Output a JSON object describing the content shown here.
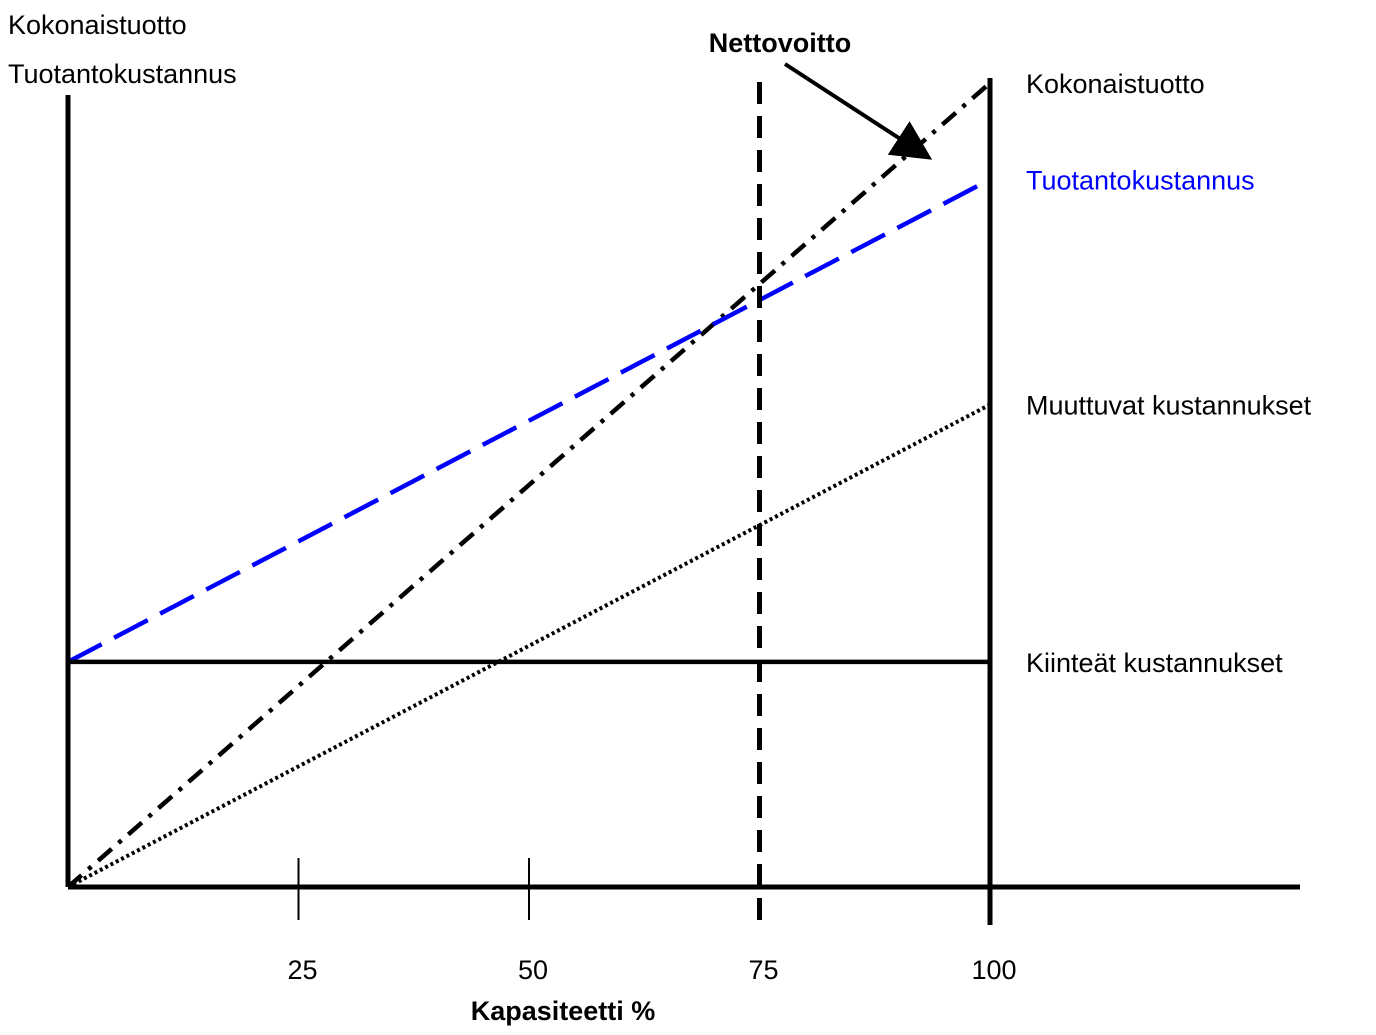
{
  "chart_data": {
    "type": "line",
    "title": "",
    "xlabel": "Kapasiteetti %",
    "ylabel_lines": [
      "Kokonaistuotto",
      "Tuotantokustannus"
    ],
    "xlim": [
      0,
      100
    ],
    "ylim": [
      0,
      100
    ],
    "x_ticks": [
      25,
      50,
      75,
      100
    ],
    "grid": false,
    "series": [
      {
        "name": "Kokonaistuotto",
        "style": "dash-dot",
        "color": "#000000",
        "x": [
          0,
          100
        ],
        "y": [
          0,
          100
        ]
      },
      {
        "name": "Tuotantokustannus",
        "style": "long-dash",
        "color": "#0000ff",
        "x": [
          0,
          100
        ],
        "y": [
          28,
          88
        ]
      },
      {
        "name": "Muuttuvat kustannukset",
        "style": "dotted",
        "color": "#000000",
        "x": [
          0,
          100
        ],
        "y": [
          0,
          60
        ]
      },
      {
        "name": "Kiinteät kustannukset",
        "style": "solid",
        "color": "#000000",
        "x": [
          0,
          100
        ],
        "y": [
          28,
          28
        ]
      }
    ],
    "reference_lines": [
      {
        "x": 75,
        "style": "dashed",
        "color": "#000000"
      }
    ],
    "annotations": [
      {
        "text": "Nettovoitto",
        "bold": true,
        "arrow_to": {
          "x": 93,
          "y": 91
        }
      }
    ]
  }
}
